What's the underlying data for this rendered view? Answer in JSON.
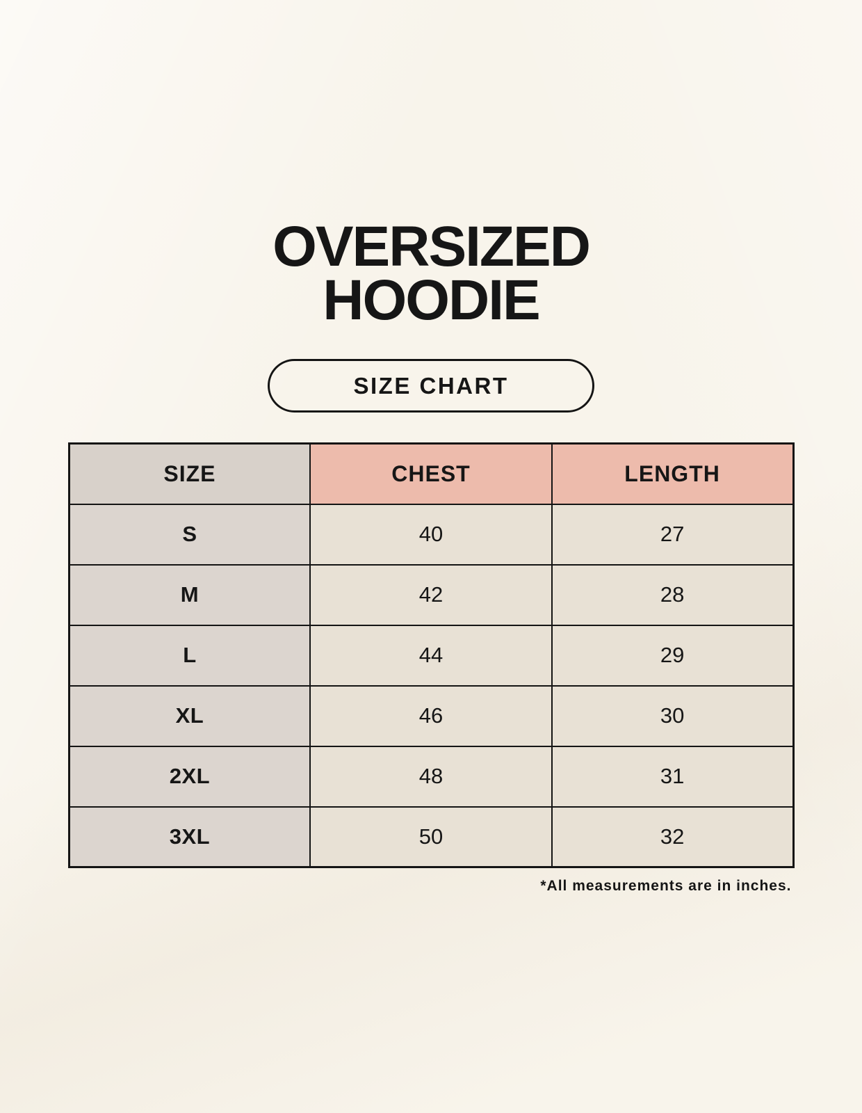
{
  "header": {
    "title_line1": "OVERSIZED",
    "title_line2": "HOODIE",
    "badge_label": "SIZE CHART"
  },
  "chart_data": {
    "type": "table",
    "title": "OVERSIZED HOODIE SIZE CHART",
    "columns": [
      "SIZE",
      "CHEST",
      "LENGTH"
    ],
    "rows": [
      [
        "S",
        "40",
        "27"
      ],
      [
        "M",
        "42",
        "28"
      ],
      [
        "L",
        "44",
        "29"
      ],
      [
        "XL",
        "46",
        "30"
      ],
      [
        "2XL",
        "48",
        "31"
      ],
      [
        "3XL",
        "50",
        "32"
      ]
    ],
    "units": "inches"
  },
  "footer": {
    "note": "*All measurements are in inches."
  },
  "colors": {
    "background": "#f8f4eb",
    "header_size_bg": "#d8d1ca",
    "header_measure_bg": "#edbbac",
    "size_col_bg": "#dcd5cf",
    "data_cell_bg": "#e8e1d5",
    "border": "#141414",
    "text": "#161616"
  }
}
